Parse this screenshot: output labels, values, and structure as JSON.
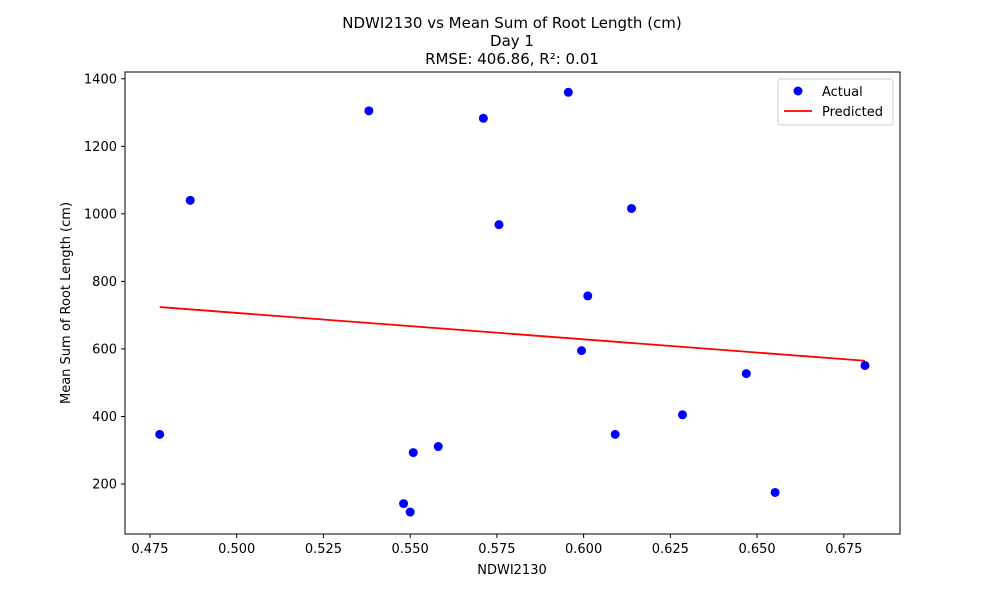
{
  "chart_data": {
    "type": "scatter",
    "title_lines": [
      "NDWI2130 vs Mean Sum of Root Length (cm)",
      "Day 1",
      "RMSE: 406.86, R²: 0.01"
    ],
    "xlabel": "NDWI2130",
    "ylabel": "Mean Sum of Root Length (cm)",
    "xlim": [
      0.4678,
      0.6912
    ],
    "ylim": [
      52,
      1420
    ],
    "xticks": [
      0.475,
      0.5,
      0.525,
      0.55,
      0.575,
      0.6,
      0.625,
      0.65,
      0.675
    ],
    "xtick_labels": [
      "0.475",
      "0.500",
      "0.525",
      "0.550",
      "0.575",
      "0.600",
      "0.625",
      "0.650",
      "0.675"
    ],
    "yticks": [
      200,
      400,
      600,
      800,
      1000,
      1200,
      1400
    ],
    "ytick_labels": [
      "200",
      "400",
      "600",
      "800",
      "1000",
      "1200",
      "1400"
    ],
    "grid": false,
    "legend_position": "top-right",
    "series": [
      {
        "name": "Actual",
        "kind": "scatter",
        "color": "#0000ff",
        "points": [
          {
            "x": 0.4778,
            "y": 347
          },
          {
            "x": 0.4866,
            "y": 1040
          },
          {
            "x": 0.5381,
            "y": 1305
          },
          {
            "x": 0.5481,
            "y": 142
          },
          {
            "x": 0.55,
            "y": 117
          },
          {
            "x": 0.5509,
            "y": 293
          },
          {
            "x": 0.5581,
            "y": 311
          },
          {
            "x": 0.5711,
            "y": 1283
          },
          {
            "x": 0.5756,
            "y": 968
          },
          {
            "x": 0.5956,
            "y": 1360
          },
          {
            "x": 0.5994,
            "y": 595
          },
          {
            "x": 0.6012,
            "y": 757
          },
          {
            "x": 0.6091,
            "y": 347
          },
          {
            "x": 0.6138,
            "y": 1016
          },
          {
            "x": 0.6285,
            "y": 405
          },
          {
            "x": 0.6469,
            "y": 527
          },
          {
            "x": 0.6552,
            "y": 175
          },
          {
            "x": 0.6811,
            "y": 551
          }
        ]
      },
      {
        "name": "Predicted",
        "kind": "line",
        "color": "#ff0000",
        "points": [
          {
            "x": 0.4778,
            "y": 724
          },
          {
            "x": 0.6811,
            "y": 565
          }
        ]
      }
    ]
  }
}
